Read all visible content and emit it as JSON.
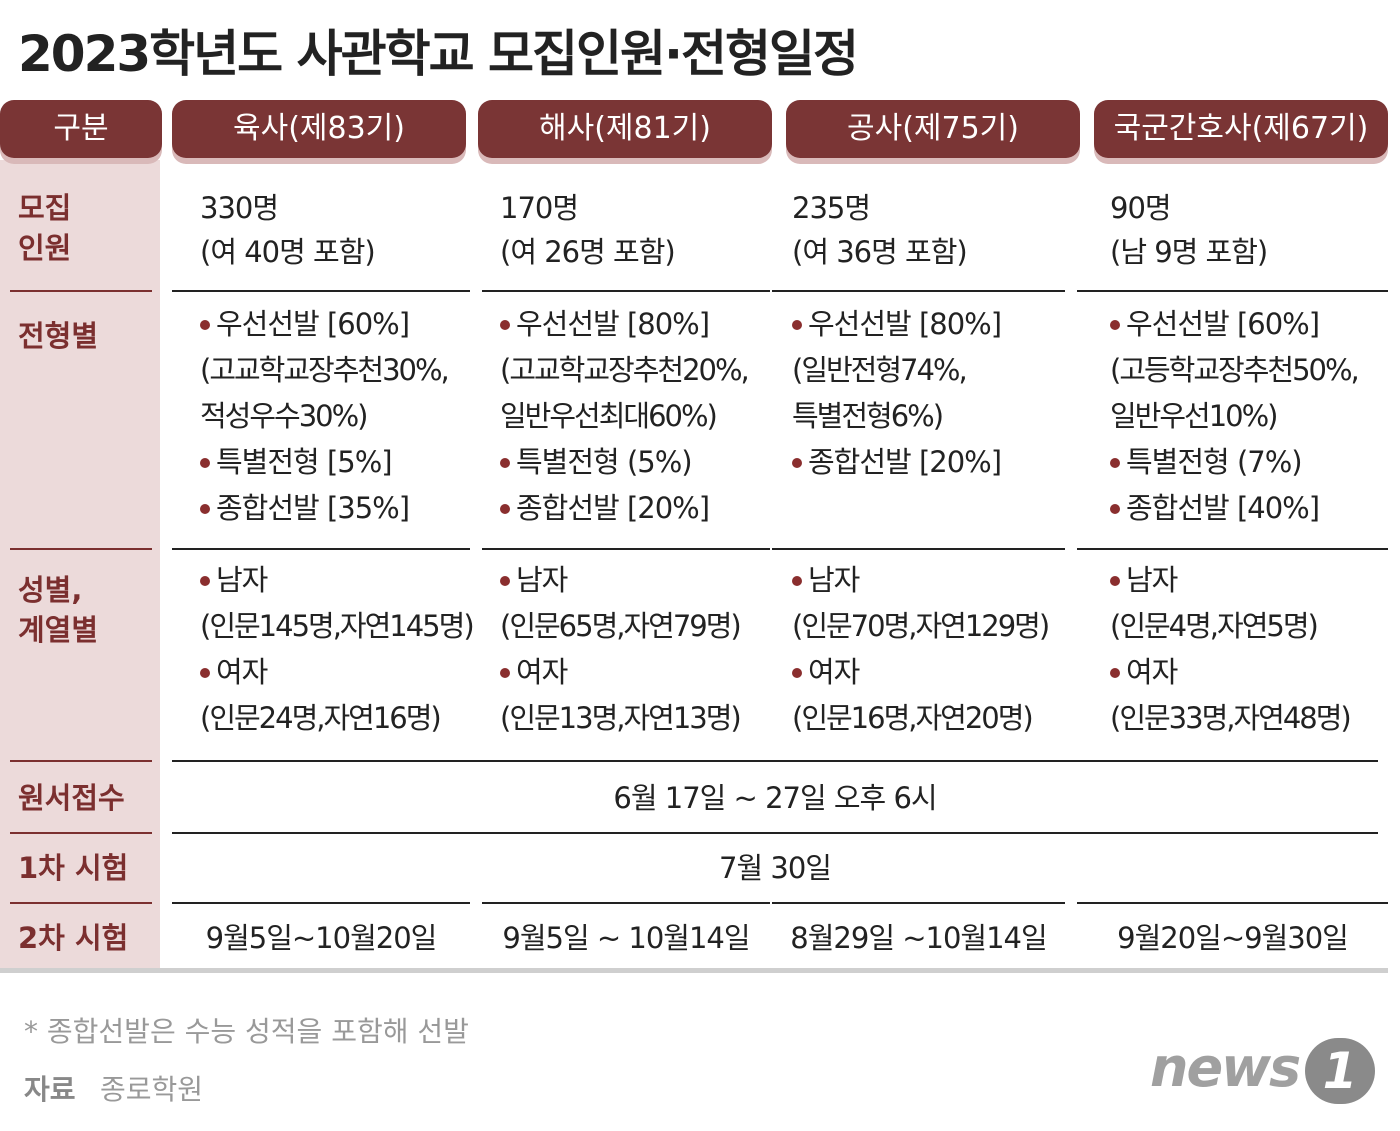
{
  "title": "2023학년도 사관학교 모집인원·전형일정",
  "table": {
    "header": [
      "구분",
      "육사(제83기)",
      "해사(제81기)",
      "공사(제75기)",
      "국군간호사(제67기)"
    ],
    "rows": [
      {
        "label": [
          "모집",
          "인원"
        ],
        "cells": [
          [
            "330명",
            "(여 40명 포함)"
          ],
          [
            "170명",
            "(여 26명 포함)"
          ],
          [
            "235명",
            "(여 36명 포함)"
          ],
          [
            "90명",
            "(남 9명 포함)"
          ]
        ]
      },
      {
        "label": [
          "전형별"
        ],
        "cells": [
          [
            {
              "title": "우선선발 [60%]",
              "details": [
                "(고교학교장추천30%,",
                "적성우수30%)"
              ]
            },
            {
              "title": "특별전형 [5%]"
            },
            {
              "title": "종합선발 [35%]"
            }
          ],
          [
            {
              "title": "우선선발 [80%]",
              "details": [
                "(고교학교장추천20%,",
                "일반우선최대60%)"
              ]
            },
            {
              "title": "특별전형 (5%)"
            },
            {
              "title": "종합선발 [20%]"
            }
          ],
          [
            {
              "title": "우선선발 [80%]",
              "details": [
                "(일반전형74%,",
                "특별전형6%)"
              ]
            },
            {
              "title": "종합선발 [20%]"
            }
          ],
          [
            {
              "title": "우선선발 [60%]",
              "details": [
                "(고등학교장추천50%,",
                "일반우선10%)"
              ]
            },
            {
              "title": "특별전형 (7%)"
            },
            {
              "title": "종합선발 [40%]"
            }
          ]
        ]
      },
      {
        "label": [
          "성별,",
          "계열별"
        ],
        "cells": [
          [
            {
              "title": "남자",
              "details": [
                "(인문145명,자연145명)"
              ]
            },
            {
              "title": "여자",
              "details": [
                "(인문24명,자연16명)"
              ]
            }
          ],
          [
            {
              "title": "남자",
              "details": [
                "(인문65명,자연79명)"
              ]
            },
            {
              "title": "여자",
              "details": [
                "(인문13명,자연13명)"
              ]
            }
          ],
          [
            {
              "title": "남자",
              "details": [
                "(인문70명,자연129명)"
              ]
            },
            {
              "title": "여자",
              "details": [
                "(인문16명,자연20명)"
              ]
            }
          ],
          [
            {
              "title": "남자",
              "details": [
                "(인문4명,자연5명)"
              ]
            },
            {
              "title": "여자",
              "details": [
                "(인문33명,자연48명)"
              ]
            }
          ]
        ]
      },
      {
        "label": [
          "원서접수"
        ],
        "span": "6월 17일 ~ 27일 오후 6시"
      },
      {
        "label": [
          "1차 시험"
        ],
        "span": "7월 30일"
      },
      {
        "label": [
          "2차 시험"
        ],
        "cells": [
          "9월5일~10월20일",
          "9월5일 ~ 10월14일",
          "8월29일 ~10월14일",
          "9월20일~9월30일"
        ]
      }
    ]
  },
  "footer": {
    "note": "* 종합선발은 수능 성적을 포함해 선발",
    "source_label": "자료",
    "source": "종로학원",
    "logo": "news",
    "logo_mark": "1"
  }
}
